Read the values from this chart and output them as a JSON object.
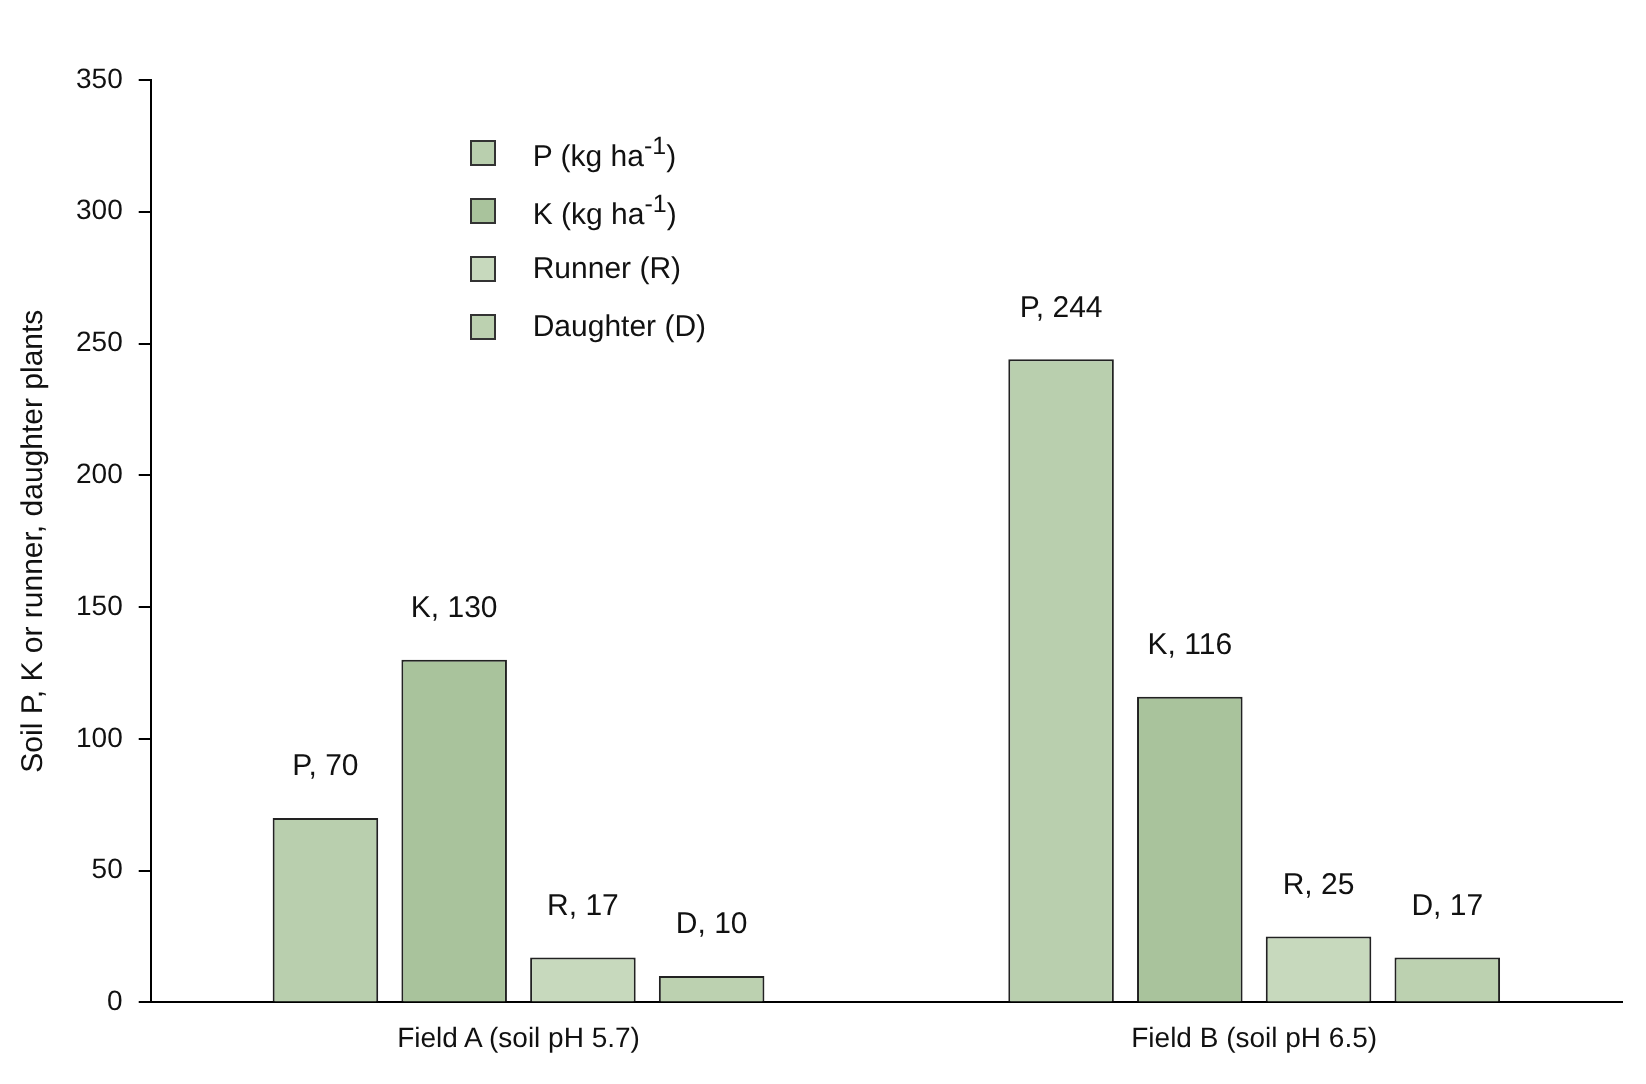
{
  "chart_data": {
    "type": "bar",
    "ylabel": "Soil P, K or runner, daughter plants",
    "categories": [
      "Field A (soil pH 5.7)",
      "Field B (soil pH 6.5)"
    ],
    "series": [
      {
        "name": "P (kg ha$^{-1}$)",
        "color": "#b9cfae",
        "values": [
          70,
          244
        ],
        "value_labels": [
          "P, 70",
          "P, 244"
        ]
      },
      {
        "name": "K (kg ha$^{-1}$)",
        "color": "#a9c39c",
        "values": [
          130,
          116
        ],
        "value_labels": [
          "K, 130",
          "K, 116"
        ]
      },
      {
        "name": "Runner (R)",
        "color": "#c7d9bd",
        "values": [
          17,
          25
        ],
        "value_labels": [
          "R, 17",
          "R, 25"
        ]
      },
      {
        "name": "Daughter (D)",
        "color": "#bcd1b0",
        "values": [
          10,
          17
        ],
        "value_labels": [
          "D, 10",
          "D, 17"
        ]
      }
    ],
    "ylim": [
      0,
      350
    ],
    "yticks": [
      0,
      50,
      100,
      150,
      200,
      250,
      300,
      350
    ],
    "grid": false,
    "legend": "top left"
  }
}
